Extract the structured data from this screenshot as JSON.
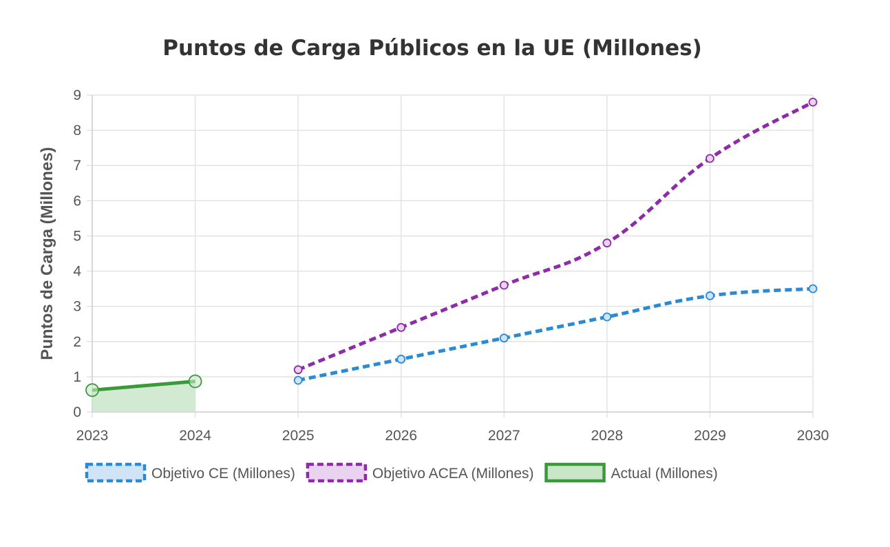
{
  "chart_data": {
    "type": "line",
    "title": "Puntos de Carga Públicos en la UE (Millones)",
    "xlabel": "",
    "ylabel": "Puntos de Carga (Millones)",
    "categories": [
      "2023",
      "2024",
      "2025",
      "2026",
      "2027",
      "2028",
      "2029",
      "2030"
    ],
    "ylim": [
      0,
      9
    ],
    "yticks": [
      "0",
      "1",
      "2",
      "3",
      "4",
      "5",
      "6",
      "7",
      "8",
      "9"
    ],
    "grid": true,
    "legend_position": "bottom",
    "series": [
      {
        "name": "Objetivo CE (Millones)",
        "values": [
          null,
          null,
          0.9,
          1.5,
          2.1,
          2.7,
          3.3,
          3.5
        ],
        "color": "#2a8ad4",
        "fill": "#cfe5f7",
        "style": "dashed"
      },
      {
        "name": "Objetivo ACEA (Millones)",
        "values": [
          null,
          null,
          1.2,
          2.4,
          3.6,
          4.8,
          7.2,
          8.8
        ],
        "color": "#8e2ba8",
        "fill": "#ead3f0",
        "style": "dashed"
      },
      {
        "name": "Actual (Millones)",
        "values": [
          0.62,
          0.87,
          null,
          null,
          null,
          null,
          null,
          null
        ],
        "color": "#3a9a3a",
        "fill": "#c9e6c9",
        "style": "solid",
        "area": true
      }
    ]
  }
}
